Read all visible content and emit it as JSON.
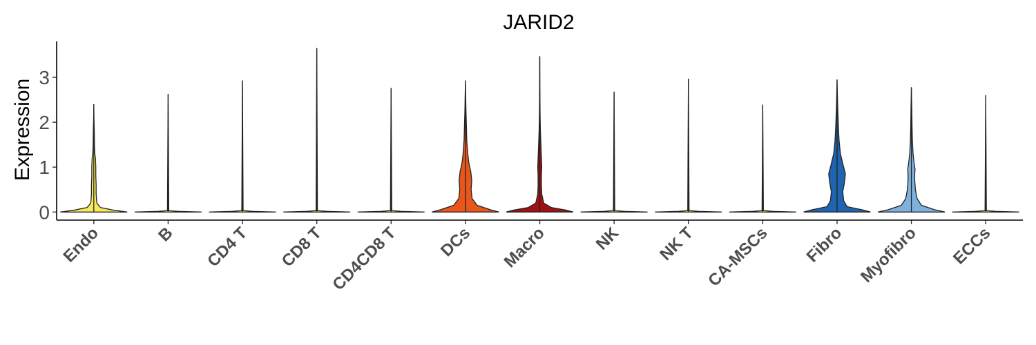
{
  "chart_data": {
    "type": "violin",
    "title": "JARID2",
    "ylabel": "Expression",
    "xlabel": "",
    "ylim": [
      -0.18,
      3.8
    ],
    "yticks": [
      0,
      1,
      2,
      3
    ],
    "categories": [
      "Endo",
      "B",
      "CD4 T",
      "CD8 T",
      "CD4CD8 T",
      "DCs",
      "Macro",
      "NK",
      "NK T",
      "CA-MSCs",
      "Fibro",
      "Myofibro",
      "ECCs"
    ],
    "colors": [
      "#f7eb5c",
      "#f7eb5c",
      "#f7eb5c",
      "#f7eb5c",
      "#f7eb5c",
      "#e8561c",
      "#a01212",
      "#f7eb5c",
      "#f7eb5c",
      "#f7eb5c",
      "#1f64b0",
      "#7fb1de",
      "#f7eb5c"
    ],
    "max_values": [
      2.4,
      2.63,
      2.93,
      3.65,
      2.76,
      2.93,
      3.47,
      2.68,
      2.97,
      2.39,
      2.95,
      2.78,
      2.6
    ],
    "density_profiles": [
      [
        [
          0,
          1
        ],
        [
          0.04,
          0.6
        ],
        [
          0.1,
          0.2
        ],
        [
          0.2,
          0.09
        ],
        [
          0.4,
          0.07
        ],
        [
          0.6,
          0.07
        ],
        [
          0.8,
          0.06
        ],
        [
          1.0,
          0.06
        ],
        [
          1.2,
          0.05
        ],
        [
          1.3,
          0.03
        ],
        [
          1.5,
          0.02
        ],
        [
          1.8,
          0.015
        ],
        [
          2.1,
          0.005
        ],
        [
          2.4,
          0
        ]
      ],
      [
        [
          0,
          1
        ],
        [
          0.015,
          0.3
        ],
        [
          0.03,
          0.02
        ],
        [
          2.63,
          0
        ]
      ],
      [
        [
          0,
          1
        ],
        [
          0.015,
          0.3
        ],
        [
          0.03,
          0.02
        ],
        [
          2.93,
          0
        ]
      ],
      [
        [
          0,
          1
        ],
        [
          0.015,
          0.3
        ],
        [
          0.03,
          0.02
        ],
        [
          3.65,
          0
        ]
      ],
      [
        [
          0,
          1
        ],
        [
          0.015,
          0.3
        ],
        [
          0.03,
          0.02
        ],
        [
          2.76,
          0
        ]
      ],
      [
        [
          0,
          1
        ],
        [
          0.05,
          0.75
        ],
        [
          0.15,
          0.35
        ],
        [
          0.3,
          0.2
        ],
        [
          0.5,
          0.17
        ],
        [
          0.7,
          0.19
        ],
        [
          0.9,
          0.16
        ],
        [
          1.1,
          0.1
        ],
        [
          1.3,
          0.07
        ],
        [
          1.6,
          0.04
        ],
        [
          1.9,
          0.03
        ],
        [
          2.3,
          0.015
        ],
        [
          2.6,
          0.008
        ],
        [
          2.93,
          0
        ]
      ],
      [
        [
          0,
          1
        ],
        [
          0.04,
          0.8
        ],
        [
          0.1,
          0.35
        ],
        [
          0.2,
          0.12
        ],
        [
          0.4,
          0.06
        ],
        [
          0.6,
          0.05
        ],
        [
          0.8,
          0.05
        ],
        [
          1.0,
          0.06
        ],
        [
          1.2,
          0.05
        ],
        [
          1.5,
          0.035
        ],
        [
          1.8,
          0.02
        ],
        [
          2.1,
          0.012
        ],
        [
          2.5,
          0.006
        ],
        [
          2.9,
          0.003
        ],
        [
          3.47,
          0
        ]
      ],
      [
        [
          0,
          1
        ],
        [
          0.015,
          0.3
        ],
        [
          0.03,
          0.02
        ],
        [
          2.68,
          0
        ]
      ],
      [
        [
          0,
          1
        ],
        [
          0.015,
          0.3
        ],
        [
          0.03,
          0.02
        ],
        [
          2.97,
          0
        ]
      ],
      [
        [
          0,
          1
        ],
        [
          0.015,
          0.3
        ],
        [
          0.03,
          0.02
        ],
        [
          2.39,
          0
        ]
      ],
      [
        [
          0,
          1
        ],
        [
          0.05,
          0.75
        ],
        [
          0.12,
          0.3
        ],
        [
          0.25,
          0.2
        ],
        [
          0.45,
          0.17
        ],
        [
          0.65,
          0.22
        ],
        [
          0.85,
          0.25
        ],
        [
          1.05,
          0.18
        ],
        [
          1.3,
          0.1
        ],
        [
          1.6,
          0.06
        ],
        [
          1.9,
          0.04
        ],
        [
          2.3,
          0.02
        ],
        [
          2.6,
          0.01
        ],
        [
          2.95,
          0
        ]
      ],
      [
        [
          0,
          1
        ],
        [
          0.05,
          0.7
        ],
        [
          0.15,
          0.3
        ],
        [
          0.3,
          0.17
        ],
        [
          0.5,
          0.12
        ],
        [
          0.7,
          0.1
        ],
        [
          0.85,
          0.1
        ],
        [
          0.95,
          0.11
        ],
        [
          1.1,
          0.08
        ],
        [
          1.3,
          0.05
        ],
        [
          1.6,
          0.03
        ],
        [
          1.9,
          0.02
        ],
        [
          2.3,
          0.012
        ],
        [
          2.78,
          0
        ]
      ],
      [
        [
          0,
          1
        ],
        [
          0.015,
          0.3
        ],
        [
          0.03,
          0.02
        ],
        [
          2.6,
          0
        ]
      ]
    ]
  }
}
